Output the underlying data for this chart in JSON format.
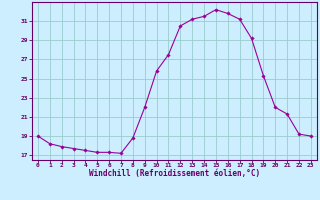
{
  "hours": [
    0,
    1,
    2,
    3,
    4,
    5,
    6,
    7,
    8,
    9,
    10,
    11,
    12,
    13,
    14,
    15,
    16,
    17,
    18,
    19,
    20,
    21,
    22,
    23
  ],
  "values": [
    19.0,
    18.2,
    17.9,
    17.7,
    17.5,
    17.3,
    17.3,
    17.2,
    18.8,
    22.0,
    25.8,
    27.5,
    30.5,
    31.2,
    31.5,
    32.2,
    31.8,
    31.2,
    29.2,
    25.3,
    22.0,
    21.3,
    19.2,
    19.0
  ],
  "xlabel": "Windchill (Refroidissement éolien,°C)",
  "xlim": [
    -0.5,
    23.5
  ],
  "ylim": [
    16.5,
    33.0
  ],
  "yticks": [
    17,
    19,
    21,
    23,
    25,
    27,
    29,
    31
  ],
  "xticks": [
    0,
    1,
    2,
    3,
    4,
    5,
    6,
    7,
    8,
    9,
    10,
    11,
    12,
    13,
    14,
    15,
    16,
    17,
    18,
    19,
    20,
    21,
    22,
    23
  ],
  "line_color": "#990099",
  "marker_color": "#990099",
  "bg_color": "#cceeff",
  "grid_color": "#99cccc",
  "axis_color": "#660066",
  "tick_color": "#660066",
  "label_color": "#660066"
}
